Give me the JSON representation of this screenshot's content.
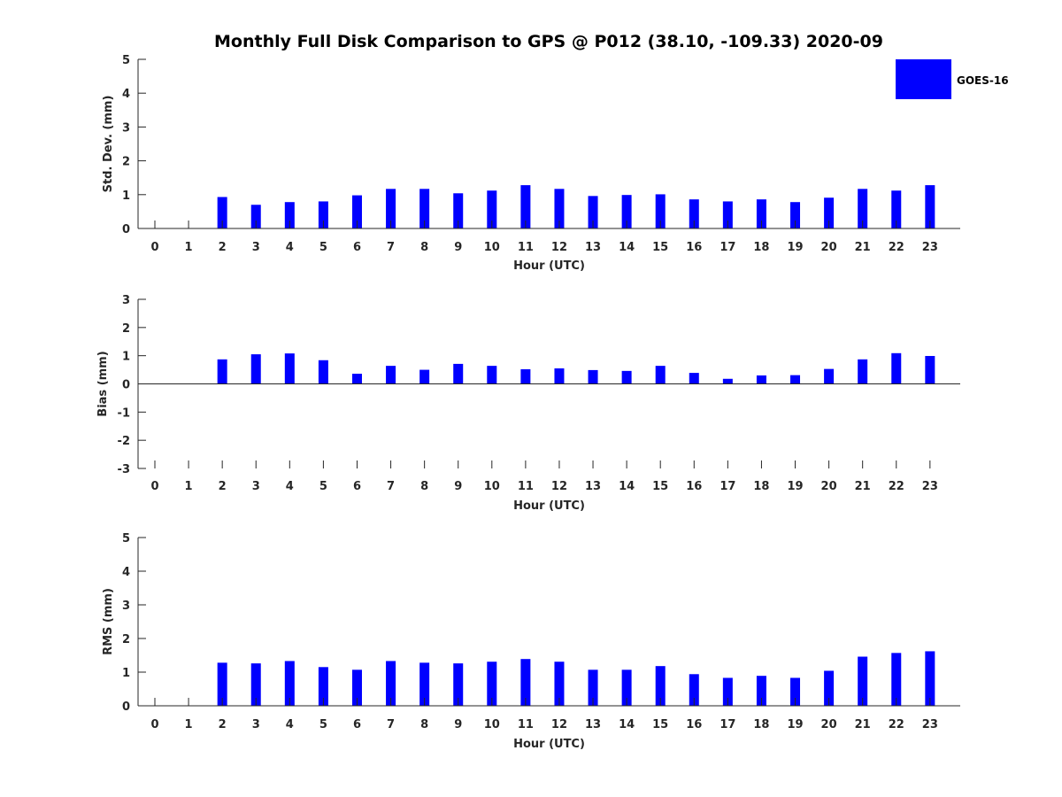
{
  "title": "Monthly Full Disk Comparison to GPS @ P012 (38.10, -109.33) 2020-09",
  "legend": {
    "label": "GOES-16",
    "position": "top-right"
  },
  "colors": {
    "bar": "#0000ff",
    "axis": "#262626",
    "title": "#000000"
  },
  "chart_data": [
    {
      "type": "bar",
      "categories": [
        "0",
        "1",
        "2",
        "3",
        "4",
        "5",
        "6",
        "7",
        "8",
        "9",
        "10",
        "11",
        "12",
        "13",
        "14",
        "15",
        "16",
        "17",
        "18",
        "19",
        "20",
        "21",
        "22",
        "23"
      ],
      "series": [
        {
          "name": "GOES-16",
          "values": [
            null,
            null,
            0.93,
            0.7,
            0.78,
            0.8,
            0.98,
            1.17,
            1.17,
            1.04,
            1.12,
            1.28,
            1.17,
            0.96,
            0.99,
            1.01,
            0.86,
            0.8,
            0.86,
            0.78,
            0.91,
            1.17,
            1.12,
            1.28
          ]
        }
      ],
      "xlabel": "Hour (UTC)",
      "ylabel": "Std. Dev. (mm)",
      "ylim": [
        0,
        5
      ],
      "yticks": [
        "0",
        "1",
        "2",
        "3",
        "4",
        "5"
      ],
      "grid": false
    },
    {
      "type": "bar",
      "categories": [
        "0",
        "1",
        "2",
        "3",
        "4",
        "5",
        "6",
        "7",
        "8",
        "9",
        "10",
        "11",
        "12",
        "13",
        "14",
        "15",
        "16",
        "17",
        "18",
        "19",
        "20",
        "21",
        "22",
        "23"
      ],
      "series": [
        {
          "name": "GOES-16",
          "values": [
            null,
            null,
            0.87,
            1.05,
            1.08,
            0.84,
            0.36,
            0.64,
            0.5,
            0.71,
            0.64,
            0.52,
            0.55,
            0.49,
            0.46,
            0.64,
            0.39,
            0.18,
            0.3,
            0.31,
            0.53,
            0.87,
            1.09,
            0.99
          ]
        }
      ],
      "xlabel": "Hour (UTC)",
      "ylabel": "Bias (mm)",
      "ylim": [
        -3,
        3
      ],
      "yticks": [
        "-3",
        "-2",
        "-1",
        "0",
        "1",
        "2",
        "3"
      ],
      "grid": false
    },
    {
      "type": "bar",
      "categories": [
        "0",
        "1",
        "2",
        "3",
        "4",
        "5",
        "6",
        "7",
        "8",
        "9",
        "10",
        "11",
        "12",
        "13",
        "14",
        "15",
        "16",
        "17",
        "18",
        "19",
        "20",
        "21",
        "22",
        "23"
      ],
      "series": [
        {
          "name": "GOES-16",
          "values": [
            null,
            null,
            1.28,
            1.26,
            1.33,
            1.15,
            1.07,
            1.33,
            1.28,
            1.26,
            1.31,
            1.39,
            1.31,
            1.07,
            1.07,
            1.18,
            0.94,
            0.83,
            0.89,
            0.83,
            1.04,
            1.46,
            1.57,
            1.62
          ]
        }
      ],
      "xlabel": "Hour (UTC)",
      "ylabel": "RMS (mm)",
      "ylim": [
        0,
        5
      ],
      "yticks": [
        "0",
        "1",
        "2",
        "3",
        "4",
        "5"
      ],
      "grid": false
    }
  ]
}
